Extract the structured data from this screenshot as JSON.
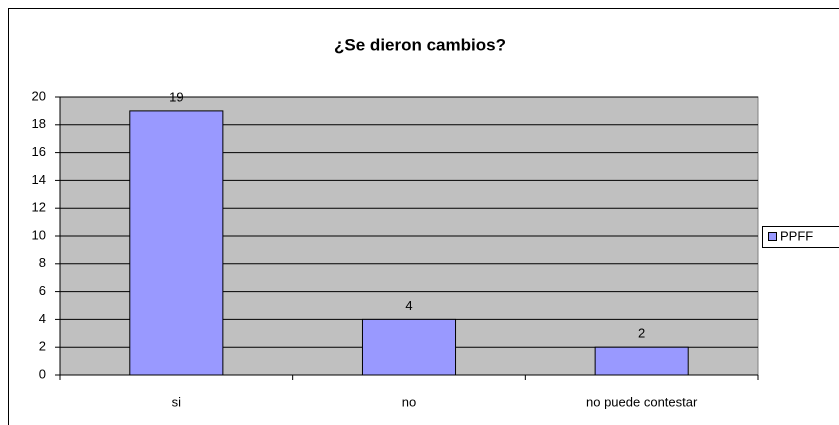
{
  "chart_data": {
    "type": "bar",
    "title": "¿Se dieron cambios?",
    "categories": [
      "si",
      "no",
      "no puede contestar"
    ],
    "series": [
      {
        "name": "PPFF",
        "color": "#9999ff",
        "values": [
          19,
          4,
          2
        ]
      }
    ],
    "ylim": [
      0,
      20
    ],
    "yticks": [
      0,
      2,
      4,
      6,
      8,
      10,
      12,
      14,
      16,
      18,
      20
    ],
    "grid": true,
    "legend": "right"
  }
}
